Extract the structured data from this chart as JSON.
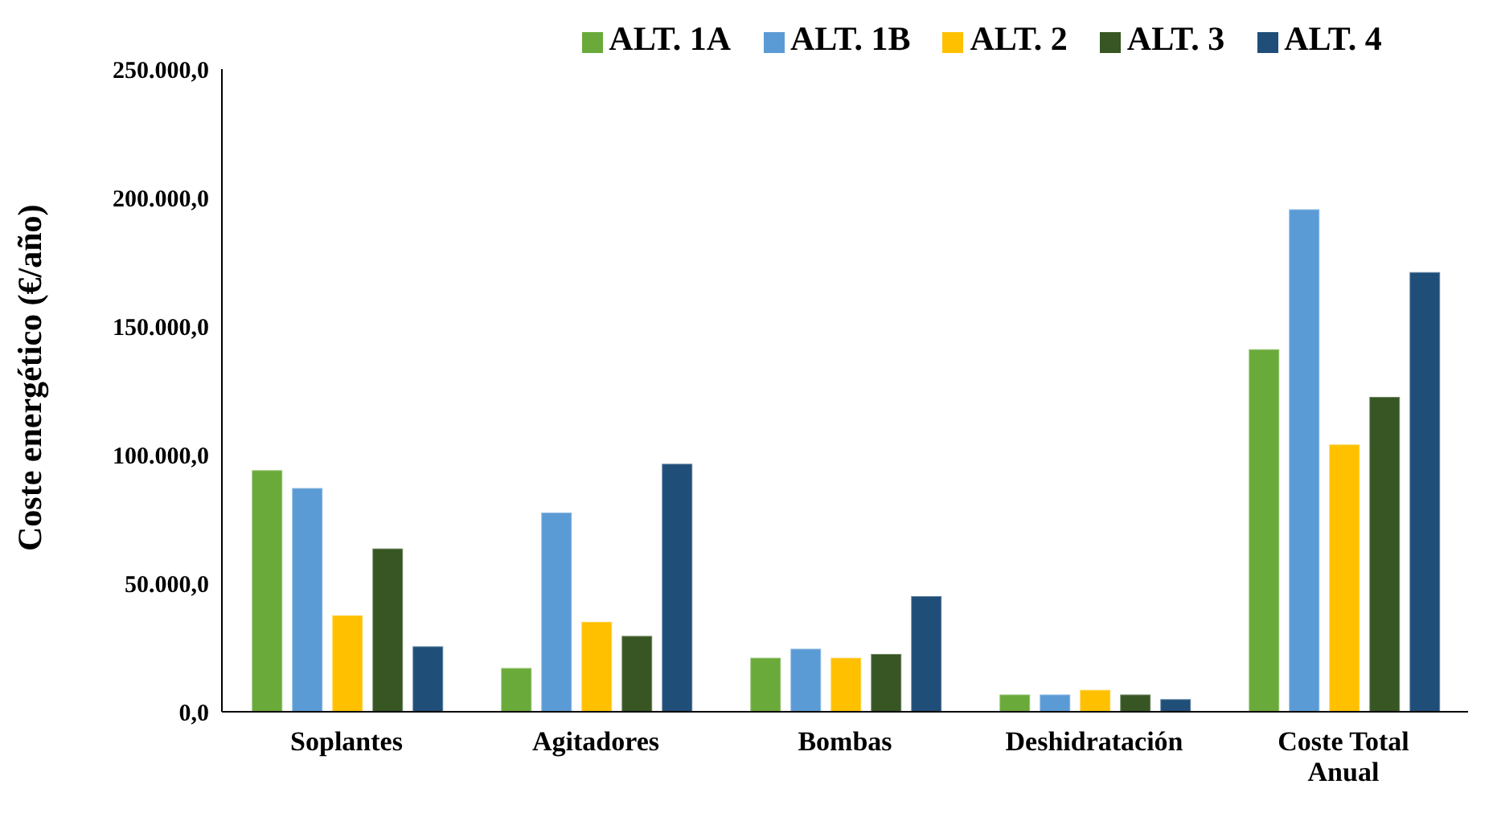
{
  "chart_data": {
    "type": "bar",
    "ylabel": "Coste energético (€/año)",
    "categories": [
      "Soplantes",
      "Agitadores",
      "Bombas",
      "Deshidratación",
      "Coste Total Anual"
    ],
    "series": [
      {
        "name": "ALT. 1A",
        "color": "#6aaa3a",
        "values": [
          94000,
          17000,
          21000,
          6700,
          141000
        ]
      },
      {
        "name": "ALT. 1B",
        "color": "#5b9bd5",
        "values": [
          87000,
          77500,
          24500,
          6700,
          195500
        ]
      },
      {
        "name": "ALT. 2",
        "color": "#ffc000",
        "values": [
          37500,
          35000,
          21000,
          8500,
          104000
        ]
      },
      {
        "name": "ALT. 3",
        "color": "#375623",
        "values": [
          63500,
          29500,
          22500,
          6700,
          122500
        ]
      },
      {
        "name": "ALT. 4",
        "color": "#1f4e79",
        "values": [
          25500,
          96500,
          45000,
          4900,
          171000
        ]
      }
    ],
    "ylim": [
      0,
      250000
    ],
    "yticks": [
      {
        "value": 0,
        "label": "0,0"
      },
      {
        "value": 50000,
        "label": "50.000,0"
      },
      {
        "value": 100000,
        "label": "100.000,0"
      },
      {
        "value": 150000,
        "label": "150.000,0"
      },
      {
        "value": 200000,
        "label": "200.000,0"
      },
      {
        "value": 250000,
        "label": "250.000,0"
      }
    ],
    "grid": false,
    "legend": "top"
  }
}
